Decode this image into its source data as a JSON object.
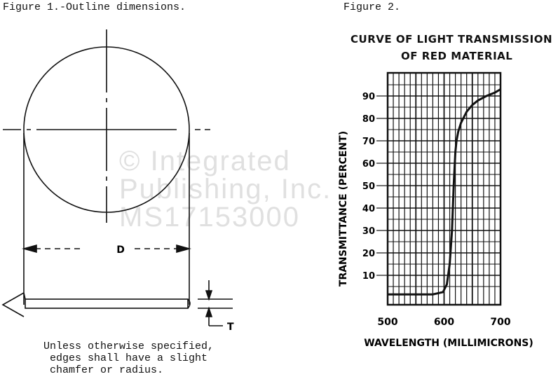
{
  "figure1": {
    "title": "Figure 1.-Outline dimensions.",
    "dim_d": "D",
    "dim_t": "T",
    "note_lines": [
      "Unless otherwise specified,",
      "edges shall have a slight",
      "chamfer or radius."
    ]
  },
  "figure2": {
    "title": "Figure 2."
  },
  "watermark": {
    "lines": [
      "© Integrated",
      "Publishing, Inc.",
      "MS17153000"
    ]
  },
  "chart_data": {
    "type": "line",
    "title_lines": [
      "CURVE OF LIGHT TRANSMISSION",
      "OF RED MATERIAL"
    ],
    "xlabel": "WAVELENGTH (MILLIMICRONS)",
    "ylabel": "TRANSMITTANCE (PERCENT)",
    "xlim": [
      500,
      700
    ],
    "ylim": [
      0,
      100
    ],
    "x_ticks": [
      500,
      600,
      700
    ],
    "y_ticks": [
      10,
      20,
      30,
      40,
      50,
      60,
      70,
      80,
      90
    ],
    "grid": true,
    "series": [
      {
        "x": [
          500,
          540,
          580,
          598,
          605,
          610,
          614,
          617,
          619,
          620,
          622,
          625,
          630,
          640,
          650,
          660,
          675,
          690,
          700
        ],
        "y": [
          1.5,
          1.5,
          1.5,
          2.5,
          6,
          15,
          30,
          50,
          60,
          65,
          70,
          74,
          78,
          83,
          86,
          88,
          90,
          91.5,
          93
        ]
      }
    ]
  }
}
